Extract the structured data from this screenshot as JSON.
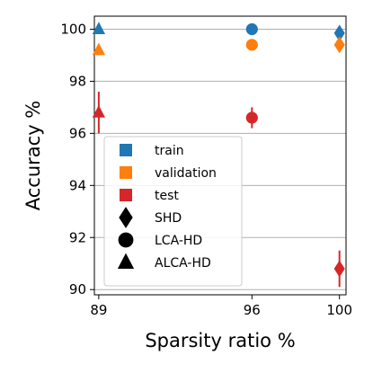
{
  "chart_data": {
    "type": "scatter",
    "xlabel": "Sparsity ratio %",
    "ylabel": "Accuracy %",
    "x_ticks": [
      89,
      96,
      100
    ],
    "y_ticks": [
      90,
      92,
      94,
      96,
      98,
      100
    ],
    "xlim": [
      88.8,
      100.3
    ],
    "ylim": [
      89.8,
      100.5
    ],
    "grid": "horizontal",
    "legend_position": "lower-left",
    "colors": {
      "train": "#1f77b4",
      "validation": "#ff7f0e",
      "test": "#d62728"
    },
    "legend": {
      "splits": [
        {
          "key": "train",
          "label": "train"
        },
        {
          "key": "validation",
          "label": "validation"
        },
        {
          "key": "test",
          "label": "test"
        }
      ],
      "methods": [
        {
          "key": "SHD",
          "label": "SHD",
          "marker": "diamond"
        },
        {
          "key": "LCA-HD",
          "label": "LCA-HD",
          "marker": "circle"
        },
        {
          "key": "ALCA-HD",
          "label": "ALCA-HD",
          "marker": "triangle"
        }
      ]
    },
    "points": [
      {
        "method": "ALCA-HD",
        "split": "train",
        "x": 89,
        "y": 100.0,
        "err": 0
      },
      {
        "method": "ALCA-HD",
        "split": "validation",
        "x": 89,
        "y": 99.2,
        "err": 0
      },
      {
        "method": "ALCA-HD",
        "split": "test",
        "x": 89,
        "y": 96.8,
        "err": 0.8
      },
      {
        "method": "LCA-HD",
        "split": "train",
        "x": 96,
        "y": 100.0,
        "err": 0
      },
      {
        "method": "LCA-HD",
        "split": "validation",
        "x": 96,
        "y": 99.4,
        "err": 0
      },
      {
        "method": "LCA-HD",
        "split": "test",
        "x": 96,
        "y": 96.6,
        "err": 0.4
      },
      {
        "method": "SHD",
        "split": "train",
        "x": 100,
        "y": 99.85,
        "err": 0.15
      },
      {
        "method": "SHD",
        "split": "validation",
        "x": 100,
        "y": 99.4,
        "err": 0.15
      },
      {
        "method": "SHD",
        "split": "test",
        "x": 100,
        "y": 90.8,
        "err": 0.7
      }
    ]
  }
}
